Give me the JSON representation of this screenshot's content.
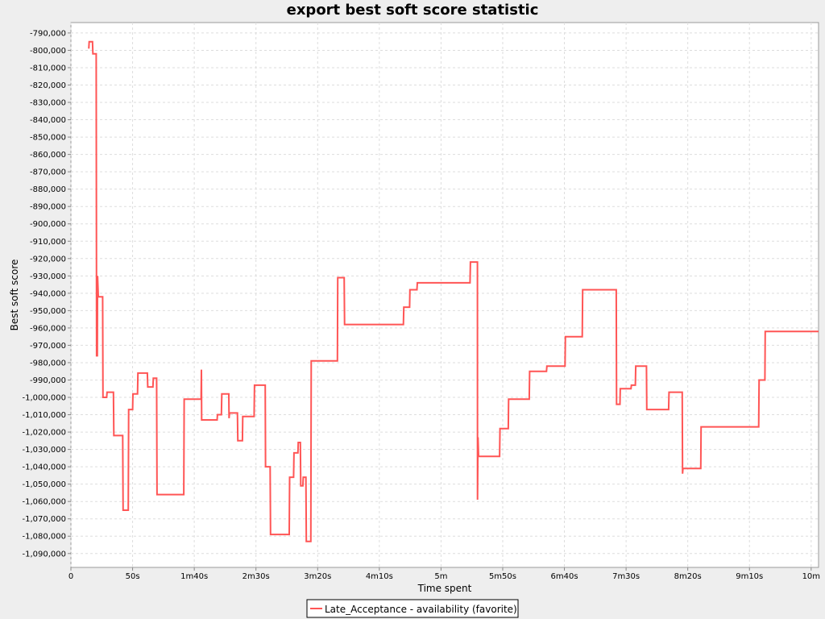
{
  "chart_data": {
    "type": "line",
    "title": "export best soft score statistic",
    "xlabel": "Time spent",
    "ylabel": "Best soft score",
    "xlim": [
      0,
      606
    ],
    "ylim": [
      -1098000,
      -784000
    ],
    "grid": true,
    "legend_position": "bottom-center",
    "x_ticks": [
      {
        "value": 0,
        "label": "0"
      },
      {
        "value": 50,
        "label": "50s"
      },
      {
        "value": 100,
        "label": "1m40s"
      },
      {
        "value": 150,
        "label": "2m30s"
      },
      {
        "value": 200,
        "label": "3m20s"
      },
      {
        "value": 250,
        "label": "4m10s"
      },
      {
        "value": 300,
        "label": "5m"
      },
      {
        "value": 350,
        "label": "5m50s"
      },
      {
        "value": 400,
        "label": "6m40s"
      },
      {
        "value": 450,
        "label": "7m30s"
      },
      {
        "value": 500,
        "label": "8m20s"
      },
      {
        "value": 550,
        "label": "9m10s"
      },
      {
        "value": 600,
        "label": "10m"
      }
    ],
    "y_ticks": [
      {
        "value": -790000,
        "label": "-790,000"
      },
      {
        "value": -800000,
        "label": "-800,000"
      },
      {
        "value": -810000,
        "label": "-810,000"
      },
      {
        "value": -820000,
        "label": "-820,000"
      },
      {
        "value": -830000,
        "label": "-830,000"
      },
      {
        "value": -840000,
        "label": "-840,000"
      },
      {
        "value": -850000,
        "label": "-850,000"
      },
      {
        "value": -860000,
        "label": "-860,000"
      },
      {
        "value": -870000,
        "label": "-870,000"
      },
      {
        "value": -880000,
        "label": "-880,000"
      },
      {
        "value": -890000,
        "label": "-890,000"
      },
      {
        "value": -900000,
        "label": "-900,000"
      },
      {
        "value": -910000,
        "label": "-910,000"
      },
      {
        "value": -920000,
        "label": "-920,000"
      },
      {
        "value": -930000,
        "label": "-930,000"
      },
      {
        "value": -940000,
        "label": "-940,000"
      },
      {
        "value": -950000,
        "label": "-950,000"
      },
      {
        "value": -960000,
        "label": "-960,000"
      },
      {
        "value": -970000,
        "label": "-970,000"
      },
      {
        "value": -980000,
        "label": "-980,000"
      },
      {
        "value": -990000,
        "label": "-990,000"
      },
      {
        "value": -1000000,
        "label": "-1,000,000"
      },
      {
        "value": -1010000,
        "label": "-1,010,000"
      },
      {
        "value": -1020000,
        "label": "-1,020,000"
      },
      {
        "value": -1030000,
        "label": "-1,030,000"
      },
      {
        "value": -1040000,
        "label": "-1,040,000"
      },
      {
        "value": -1050000,
        "label": "-1,050,000"
      },
      {
        "value": -1060000,
        "label": "-1,060,000"
      },
      {
        "value": -1070000,
        "label": "-1,070,000"
      },
      {
        "value": -1080000,
        "label": "-1,080,000"
      },
      {
        "value": -1090000,
        "label": "-1,090,000"
      }
    ],
    "series": [
      {
        "name": "Late_Acceptance - availability (favorite)",
        "color": "#ff5555",
        "step": true,
        "points": [
          [
            14.5,
            -799000
          ],
          [
            14.8,
            -795000
          ],
          [
            17.5,
            -795000
          ],
          [
            17.8,
            -802000
          ],
          [
            20.5,
            -802000
          ],
          [
            20.8,
            -976000
          ],
          [
            21.4,
            -976000
          ],
          [
            21.6,
            -930000
          ],
          [
            22.2,
            -942000
          ],
          [
            25.7,
            -942000
          ],
          [
            26.0,
            -1000000
          ],
          [
            29.0,
            -1000000
          ],
          [
            29.3,
            -997000
          ],
          [
            34.5,
            -997000
          ],
          [
            34.8,
            -1022000
          ],
          [
            42.0,
            -1022000
          ],
          [
            42.3,
            -1065000
          ],
          [
            46.5,
            -1065000
          ],
          [
            46.8,
            -1007000
          ],
          [
            50.0,
            -1007000
          ],
          [
            50.3,
            -998000
          ],
          [
            54.0,
            -998000
          ],
          [
            54.3,
            -986000
          ],
          [
            62.0,
            -986000
          ],
          [
            62.3,
            -994000
          ],
          [
            66.5,
            -994000
          ],
          [
            66.8,
            -989000
          ],
          [
            69.5,
            -989000
          ],
          [
            69.8,
            -1056000
          ],
          [
            91.5,
            -1056000
          ],
          [
            91.8,
            -1001000
          ],
          [
            105.5,
            -1001000
          ],
          [
            105.8,
            -984000
          ],
          [
            106.0,
            -1013000
          ],
          [
            118.5,
            -1013000
          ],
          [
            118.8,
            -1010000
          ],
          [
            122.0,
            -1010000
          ],
          [
            122.3,
            -998000
          ],
          [
            128.0,
            -998000
          ],
          [
            128.2,
            -1012000
          ],
          [
            128.6,
            -1009000
          ],
          [
            135.0,
            -1009000
          ],
          [
            135.3,
            -1025000
          ],
          [
            139.0,
            -1025000
          ],
          [
            139.3,
            -1011000
          ],
          [
            148.5,
            -1011000
          ],
          [
            148.8,
            -993000
          ],
          [
            157.5,
            -993000
          ],
          [
            157.8,
            -1040000
          ],
          [
            161.5,
            -1040000
          ],
          [
            161.8,
            -1079000
          ],
          [
            177.0,
            -1079000
          ],
          [
            177.3,
            -1046000
          ],
          [
            180.5,
            -1046000
          ],
          [
            180.8,
            -1032000
          ],
          [
            184.0,
            -1032000
          ],
          [
            184.3,
            -1026000
          ],
          [
            186.0,
            -1026000
          ],
          [
            186.3,
            -1051000
          ],
          [
            188.0,
            -1051000
          ],
          [
            188.3,
            -1046000
          ],
          [
            190.5,
            -1046000
          ],
          [
            190.8,
            -1083000
          ],
          [
            194.5,
            -1083000
          ],
          [
            194.8,
            -979000
          ],
          [
            216.0,
            -979000
          ],
          [
            216.3,
            -931000
          ],
          [
            221.5,
            -931000
          ],
          [
            221.8,
            -958000
          ],
          [
            269.5,
            -958000
          ],
          [
            269.8,
            -948000
          ],
          [
            274.5,
            -948000
          ],
          [
            274.8,
            -938000
          ],
          [
            280.5,
            -938000
          ],
          [
            280.8,
            -934000
          ],
          [
            323.5,
            -934000
          ],
          [
            323.8,
            -922000
          ],
          [
            329.5,
            -922000
          ],
          [
            329.6,
            -1059000
          ],
          [
            330.0,
            -1023000
          ],
          [
            330.4,
            -1034000
          ],
          [
            347.5,
            -1034000
          ],
          [
            347.8,
            -1018000
          ],
          [
            354.5,
            -1018000
          ],
          [
            354.8,
            -1001000
          ],
          [
            371.5,
            -1001000
          ],
          [
            371.8,
            -985000
          ],
          [
            385.5,
            -985000
          ],
          [
            385.8,
            -982000
          ],
          [
            400.5,
            -982000
          ],
          [
            400.8,
            -965000
          ],
          [
            414.5,
            -965000
          ],
          [
            414.8,
            -938000
          ],
          [
            442.0,
            -938000
          ],
          [
            442.3,
            -1004000
          ],
          [
            445.0,
            -1004000
          ],
          [
            445.3,
            -995000
          ],
          [
            454.0,
            -995000
          ],
          [
            454.3,
            -993000
          ],
          [
            457.5,
            -993000
          ],
          [
            457.8,
            -982000
          ],
          [
            466.5,
            -982000
          ],
          [
            466.8,
            -1007000
          ],
          [
            484.5,
            -1007000
          ],
          [
            484.8,
            -997000
          ],
          [
            495.5,
            -997000
          ],
          [
            495.8,
            -1044000
          ],
          [
            496.1,
            -1041000
          ],
          [
            510.5,
            -1041000
          ],
          [
            510.8,
            -1017000
          ],
          [
            557.5,
            -1017000
          ],
          [
            557.8,
            -990000
          ],
          [
            562.5,
            -990000
          ],
          [
            562.8,
            -962000
          ],
          [
            606.0,
            -962000
          ]
        ]
      }
    ]
  }
}
